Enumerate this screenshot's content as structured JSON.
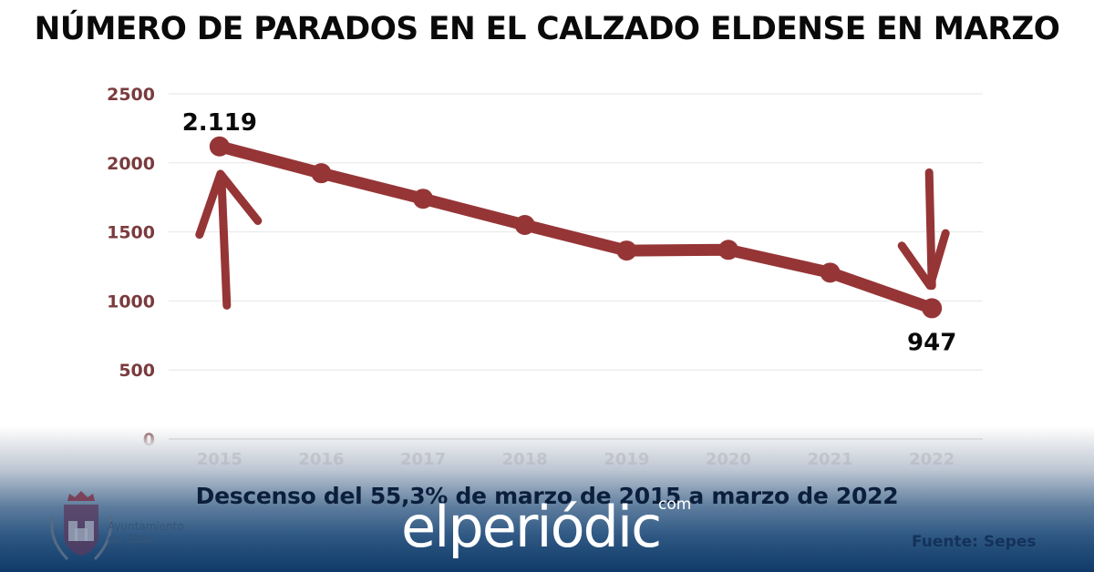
{
  "title": "NÚMERO DE PARADOS EN EL CALZADO ELDENSE EN MARZO",
  "subtitle": "Descenso del 55,3% de marzo de 2015 a marzo de 2022",
  "source": "Fuente: Sepes",
  "watermark": {
    "text": "elperiódic",
    "suffix": "com"
  },
  "logo": {
    "line1": "Ayuntamiento",
    "line2": "de Elda",
    "icon": "coat-of-arms-icon"
  },
  "colors": {
    "line": "#963536",
    "title": "#0a0a0a",
    "axis_text": "#7a3b3e",
    "footer": "#0f3a68"
  },
  "annotations": [
    {
      "type": "arrow-up",
      "target": "2015",
      "icon": "hand-drawn-arrow-up-icon"
    },
    {
      "type": "arrow-down",
      "target": "2022",
      "icon": "hand-drawn-arrow-down-icon"
    }
  ],
  "chart_data": {
    "type": "line",
    "title": "NÚMERO DE PARADOS EN EL CALZADO ELDENSE EN MARZO",
    "xlabel": "",
    "ylabel": "",
    "categories": [
      "2015",
      "2016",
      "2017",
      "2018",
      "2019",
      "2020",
      "2021",
      "2022"
    ],
    "series": [
      {
        "name": "Parados",
        "values": [
          2119,
          1925,
          1740,
          1550,
          1365,
          1370,
          1205,
          947
        ]
      }
    ],
    "data_labels": [
      {
        "category": "2015",
        "text": "2.119",
        "position": "above"
      },
      {
        "category": "2022",
        "text": "947",
        "position": "below"
      }
    ],
    "yticks": [
      0,
      500,
      1000,
      1500,
      2000,
      2500
    ],
    "ylim": [
      0,
      2500
    ],
    "grid": true,
    "legend": "none"
  }
}
